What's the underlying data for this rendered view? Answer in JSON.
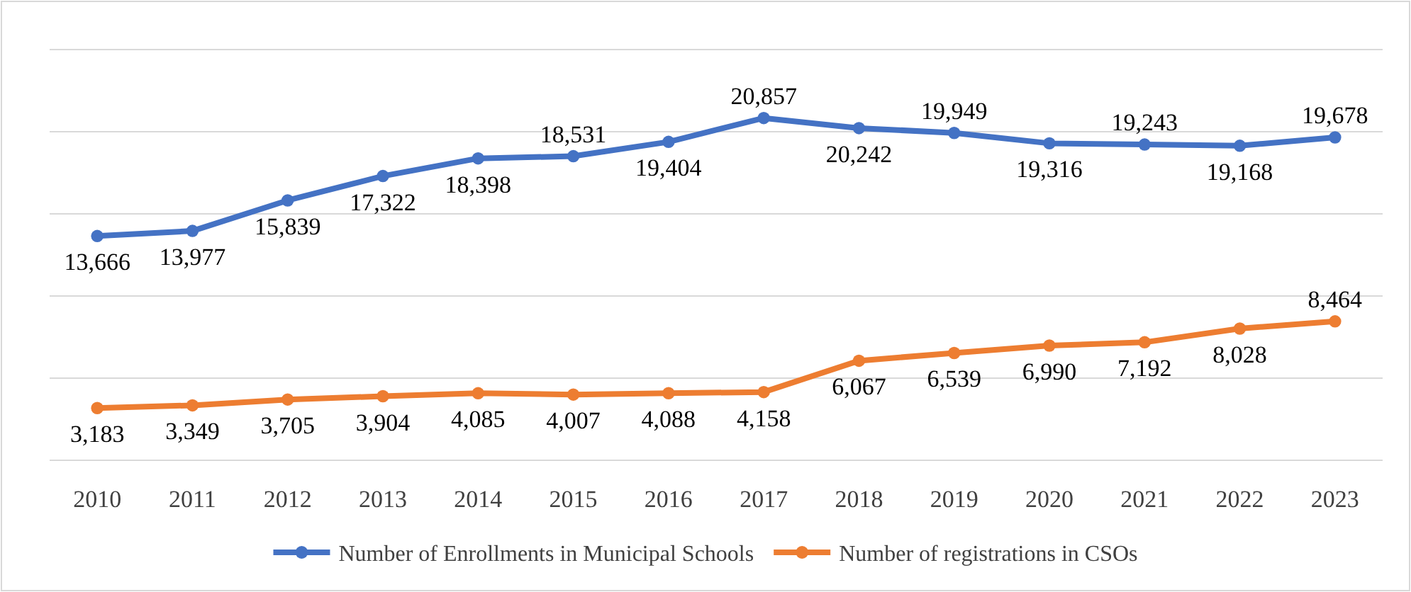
{
  "chart_data": {
    "type": "line",
    "categories": [
      "2010",
      "2011",
      "2012",
      "2013",
      "2014",
      "2015",
      "2016",
      "2017",
      "2018",
      "2019",
      "2020",
      "2021",
      "2022",
      "2023"
    ],
    "series": [
      {
        "name": "Number of Enrollments in Municipal Schools",
        "color": "#4472c4",
        "values": [
          13666,
          13977,
          15839,
          17322,
          18398,
          18531,
          19404,
          20857,
          20242,
          19949,
          19316,
          19243,
          19168,
          19678
        ],
        "value_labels": [
          "13,666",
          "13,977",
          "15,839",
          "17,322",
          "18,398",
          "18,531",
          "19,404",
          "20,857",
          "20,242",
          "19,949",
          "19,316",
          "19,243",
          "19,168",
          "19,678"
        ]
      },
      {
        "name": "Number of registrations in CSOs",
        "color": "#ed7d31",
        "values": [
          3183,
          3349,
          3705,
          3904,
          4085,
          4007,
          4088,
          4158,
          6067,
          6539,
          6990,
          7192,
          8028,
          8464
        ],
        "value_labels": [
          "3,183",
          "3,349",
          "3,705",
          "3,904",
          "4,085",
          "4,007",
          "4,088",
          "4,158",
          "6,067",
          "6,539",
          "6,990",
          "7,192",
          "8,028",
          "8,464"
        ]
      }
    ],
    "tick_labels": "x",
    "grid": true,
    "legend": "bottom",
    "marker": "circle",
    "line_style": "solid"
  }
}
